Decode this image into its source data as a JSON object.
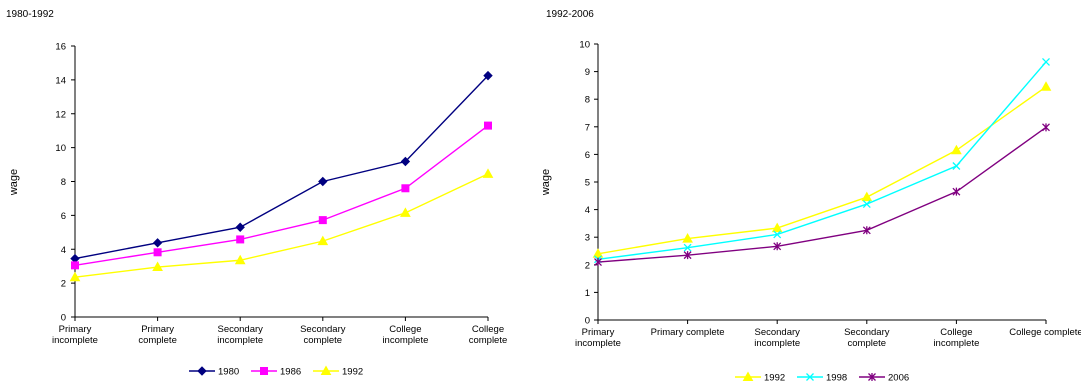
{
  "chart_data": [
    {
      "type": "line",
      "title": "1980-1992",
      "xlabel": "",
      "ylabel": "wage",
      "ylim": [
        0,
        16
      ],
      "ytick_step": 2,
      "grid": false,
      "legend_position": "bottom",
      "categories": [
        "Primary incomplete",
        "Primary complete",
        "Secondary incomplete",
        "Secondary complete",
        "College incomplete",
        "College complete"
      ],
      "series": [
        {
          "name": "1980",
          "color": "#000080",
          "marker": "diamond",
          "values": [
            3.45,
            4.38,
            5.3,
            8.0,
            9.18,
            14.25
          ]
        },
        {
          "name": "1986",
          "color": "#ff00ff",
          "marker": "square",
          "values": [
            3.05,
            3.82,
            4.58,
            5.72,
            7.6,
            11.3
          ]
        },
        {
          "name": "1992",
          "color": "#ffff00",
          "marker": "triangle",
          "values": [
            2.35,
            2.95,
            3.35,
            4.48,
            6.15,
            8.45
          ]
        }
      ]
    },
    {
      "type": "line",
      "title": "1992-2006",
      "xlabel": "",
      "ylabel": "wage",
      "ylim": [
        0,
        10
      ],
      "ytick_step": 1,
      "grid": false,
      "legend_position": "bottom",
      "categories": [
        "Primary incomplete",
        "Primary complete",
        "Secondary incomplete",
        "Secondary complete",
        "College incomplete",
        "College complete"
      ],
      "series": [
        {
          "name": "1992",
          "color": "#ffff00",
          "marker": "triangle",
          "values": [
            2.4,
            2.95,
            3.33,
            4.45,
            6.15,
            8.45
          ]
        },
        {
          "name": "1998",
          "color": "#00ffff",
          "marker": "x",
          "values": [
            2.2,
            2.62,
            3.1,
            4.2,
            5.58,
            9.35
          ]
        },
        {
          "name": "2006",
          "color": "#800080",
          "marker": "star",
          "values": [
            2.1,
            2.35,
            2.67,
            3.25,
            4.65,
            6.98
          ]
        }
      ]
    }
  ]
}
